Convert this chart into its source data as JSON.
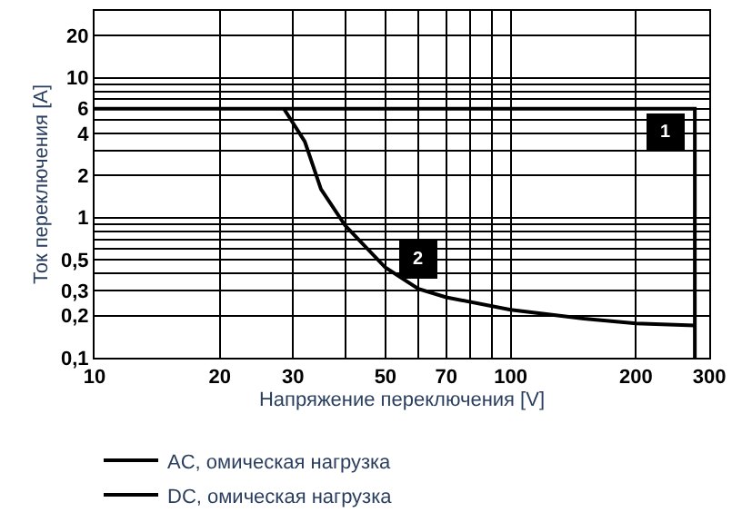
{
  "chart_data": {
    "type": "line",
    "xlabel": "Напряжение переключения [V]",
    "ylabel": "Ток переключения [A]",
    "log": "xy",
    "grid": true,
    "legend": "bottom",
    "marker": "none",
    "line_style": "solid",
    "xlim": [
      10,
      300
    ],
    "ylim": [
      0.1,
      30
    ],
    "xticks": [
      10,
      20,
      30,
      {
        "value": 40,
        "label": null
      },
      50,
      {
        "value": 60,
        "label": null
      },
      70,
      {
        "value": 80,
        "label": null
      },
      {
        "value": 90,
        "label": null
      },
      100,
      200,
      300
    ],
    "yticks": [
      {
        "value": 0.1,
        "label": "0,1"
      },
      {
        "value": 0.2,
        "label": "0,2"
      },
      {
        "value": 0.3,
        "label": "0,3"
      },
      {
        "value": 0.4,
        "label": null
      },
      {
        "value": 0.5,
        "label": "0,5"
      },
      {
        "value": 0.6,
        "label": null
      },
      {
        "value": 0.7,
        "label": null
      },
      {
        "value": 0.8,
        "label": null
      },
      {
        "value": 0.9,
        "label": null
      },
      1,
      2,
      {
        "value": 3,
        "label": null
      },
      4,
      {
        "value": 5,
        "label": null
      },
      6,
      {
        "value": 7,
        "label": null
      },
      {
        "value": 8,
        "label": null
      },
      {
        "value": 9,
        "label": null
      },
      10,
      20
    ],
    "series": [
      {
        "name": "AC, омическая нагрузка",
        "color": "#000000",
        "x": [
          10,
          277,
          277
        ],
        "values": [
          6,
          6,
          0.1
        ]
      },
      {
        "name": "DC, омическая нагрузка",
        "color": "#000000",
        "x": [
          28.5,
          32,
          35,
          40,
          50,
          60,
          70,
          100,
          150,
          200,
          277
        ],
        "values": [
          6,
          3.5,
          1.6,
          0.88,
          0.44,
          0.31,
          0.27,
          0.22,
          0.19,
          0.176,
          0.17
        ]
      }
    ],
    "annotations": [
      {
        "text": "1",
        "x": 235,
        "y": 4
      },
      {
        "text": "2",
        "x": 60,
        "y": 0.5
      }
    ]
  }
}
